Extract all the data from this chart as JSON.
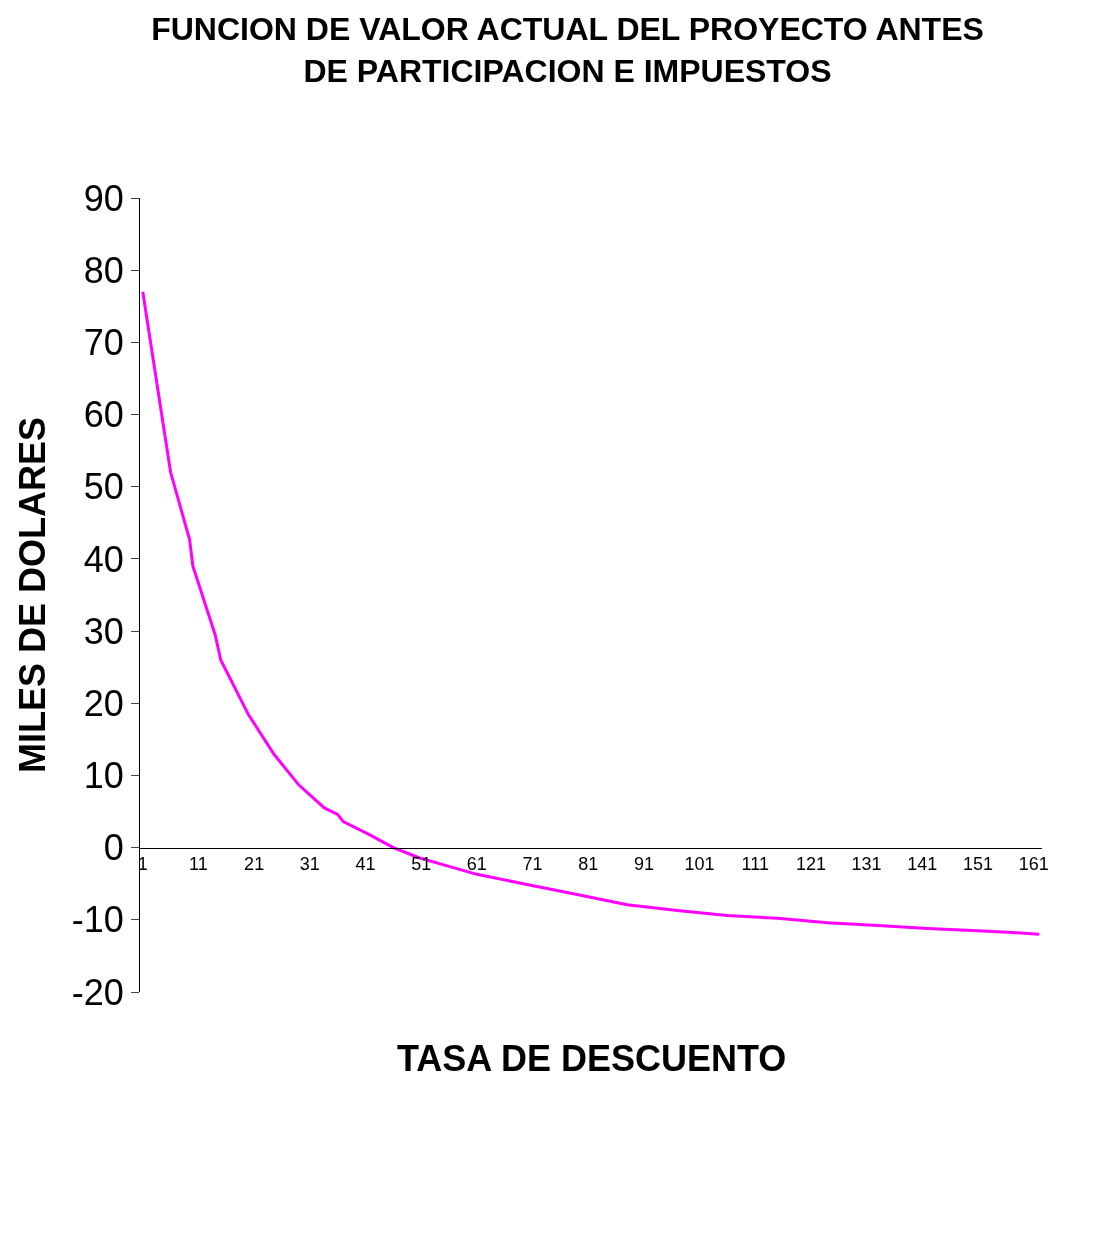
{
  "chart_data": {
    "type": "line",
    "title": "FUNCION DE VALOR ACTUAL DEL PROYECTO ANTES\nDE PARTICIPACION E IMPUESTOS",
    "xlabel": "TASA DE DESCUENTO",
    "ylabel": "MILES DE DOLARES",
    "x": [
      1,
      5,
      6,
      9.4,
      10,
      14,
      15,
      20,
      24.6,
      29,
      33.6,
      36,
      37,
      41.7,
      46,
      50.6,
      56,
      61,
      70,
      79,
      88,
      97,
      106,
      115,
      124,
      133,
      142,
      151,
      158,
      162
    ],
    "series": [
      {
        "color": "#ff00ff",
        "values": [
          77,
          57,
          52,
          42.7,
          39,
          29.5,
          26,
          18.4,
          12.9,
          8.7,
          5.5,
          4.6,
          3.6,
          1.8,
          0,
          -1.4,
          -2.6,
          -3.7,
          -5.1,
          -6.5,
          -7.9,
          -8.7,
          -9.4,
          -9.8,
          -10.4,
          -10.8,
          -11.2,
          -11.5,
          -11.8,
          -12
        ]
      }
    ],
    "xlim": [
      0.5,
      162.5
    ],
    "xticks": [
      1,
      11,
      21,
      31,
      41,
      51,
      61,
      71,
      81,
      91,
      101,
      111,
      121,
      131,
      141,
      151,
      161
    ],
    "ylim": [
      -20,
      90
    ],
    "yticks": [
      -20,
      -10,
      0,
      10,
      20,
      30,
      40,
      50,
      60,
      70,
      80,
      90
    ],
    "marker": "none",
    "line_style": "solid"
  }
}
